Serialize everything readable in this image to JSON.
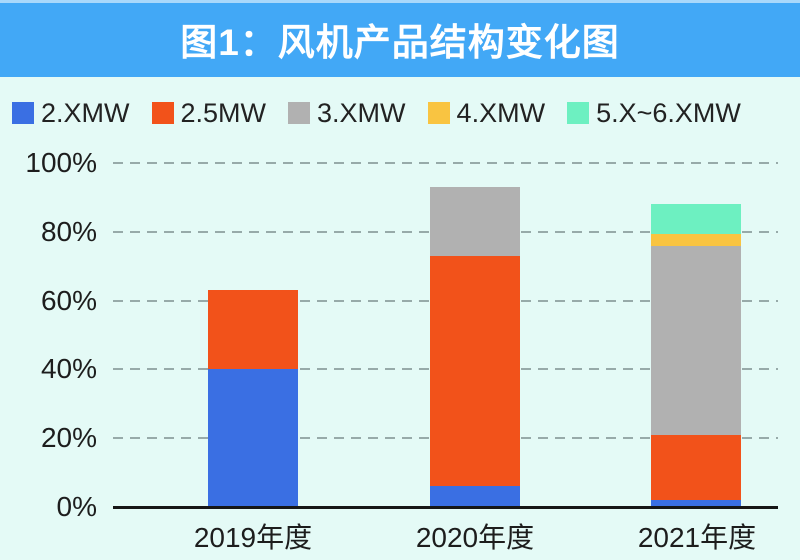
{
  "header": {
    "title": "图1：风机产品结构变化图"
  },
  "colors": {
    "header_bg": "#42a8f6",
    "page_bg": "#e4faf6",
    "title_text": "#ffffff",
    "axis_line": "#161616",
    "gridline": "#97aaa9",
    "label_text": "#1d1d1d"
  },
  "chart_data": {
    "type": "bar",
    "stacked": true,
    "title": "图1：风机产品结构变化图",
    "categories": [
      "2019年度",
      "2020年度",
      "2021年度"
    ],
    "series": [
      {
        "name": "2.XMW",
        "color": "#3a6fe3",
        "values": [
          40,
          6,
          2
        ]
      },
      {
        "name": "2.5MW",
        "color": "#f2521a",
        "values": [
          23,
          67,
          19
        ]
      },
      {
        "name": "3.XMW",
        "color": "#b1b1b1",
        "values": [
          0,
          20,
          55
        ]
      },
      {
        "name": "4.XMW",
        "color": "#f9c441",
        "values": [
          0,
          0,
          3.5
        ]
      },
      {
        "name": "5.X~6.XMW",
        "color": "#6df0c1",
        "values": [
          0,
          0,
          8.5
        ]
      }
    ],
    "bar_totals": [
      63,
      93,
      88
    ],
    "ylim": [
      0,
      100
    ],
    "yticks": [
      "100%",
      "80%",
      "60%",
      "40%",
      "20%",
      "0%"
    ],
    "grid": "horizontal-dashed",
    "legend_position": "top-left",
    "xlabel": "",
    "ylabel": ""
  }
}
